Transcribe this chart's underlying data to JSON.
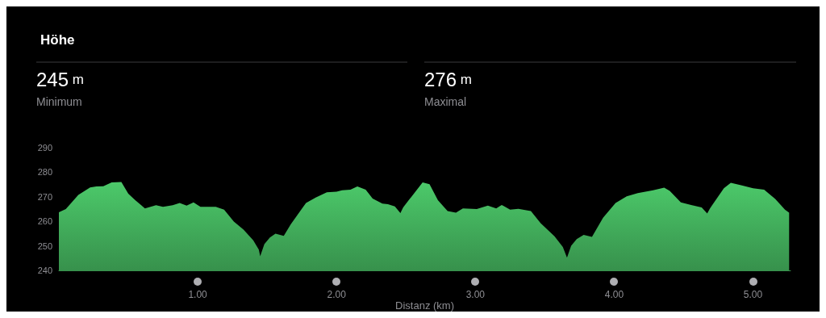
{
  "chart_data": {
    "type": "area",
    "title": "Höhe",
    "xlabel": "Distanz (km)",
    "annotations": [
      "245 m",
      "Minimum",
      "276 m",
      "Maximal"
    ],
    "x": [
      0.0,
      0.05,
      0.14,
      0.225,
      0.27,
      0.32,
      0.38,
      0.45,
      0.5,
      0.55,
      0.62,
      0.7,
      0.75,
      0.82,
      0.87,
      0.92,
      0.97,
      1.02,
      1.13,
      1.19,
      1.26,
      1.33,
      1.4,
      1.44,
      1.45,
      1.48,
      1.52,
      1.56,
      1.62,
      1.67,
      1.78,
      1.85,
      1.93,
      2.0,
      2.04,
      2.1,
      2.15,
      2.21,
      2.26,
      2.33,
      2.37,
      2.42,
      2.46,
      2.48,
      2.62,
      2.67,
      2.73,
      2.8,
      2.86,
      2.91,
      3.01,
      3.09,
      3.15,
      3.19,
      3.25,
      3.31,
      3.4,
      3.47,
      3.57,
      3.63,
      3.66,
      3.69,
      3.73,
      3.78,
      3.84,
      3.92,
      4.01,
      4.09,
      4.17,
      4.28,
      4.36,
      4.4,
      4.48,
      4.56,
      4.63,
      4.67,
      4.69,
      4.79,
      4.84,
      4.92,
      5.0,
      5.08,
      5.16,
      5.23,
      5.26
    ],
    "series": [
      {
        "color": "#4cc96a",
        "values": [
          263.7,
          265,
          270.8,
          273.8,
          274.2,
          274.3,
          275.9,
          276,
          271.3,
          268.6,
          265.3,
          266.6,
          265.9,
          266.6,
          267.5,
          266.4,
          267.7,
          265.9,
          265.9,
          264.8,
          259.9,
          256.6,
          252.3,
          248.5,
          245.8,
          250.7,
          253.4,
          255,
          254.1,
          258.8,
          267.5,
          269.7,
          271.8,
          272.1,
          272.7,
          272.9,
          274.2,
          272.9,
          269.3,
          267.2,
          267,
          266.1,
          263.4,
          265.7,
          275.9,
          275.1,
          268.6,
          264.2,
          263.5,
          265.3,
          265,
          266.4,
          265.3,
          266.7,
          264.8,
          265.1,
          264.2,
          259.3,
          253.9,
          249.6,
          245.2,
          250.1,
          252.8,
          254.5,
          253.7,
          261.5,
          267.5,
          270.2,
          271.5,
          272.7,
          273.7,
          272.4,
          267.7,
          266.6,
          265.7,
          263.2,
          265.3,
          273.5,
          275.7,
          274.6,
          273.5,
          272.9,
          269.1,
          264.8,
          263.5
        ]
      }
    ],
    "xlim": [
      0,
      5.27
    ],
    "xticks": [
      {
        "value": 1,
        "label": "1.00"
      },
      {
        "value": 2,
        "label": "2.00"
      },
      {
        "value": 3,
        "label": "3.00"
      },
      {
        "value": 4,
        "label": "4.00"
      },
      {
        "value": 5,
        "label": "5.00"
      }
    ],
    "ylim": [
      240,
      290
    ],
    "yticks": [
      240,
      250,
      260,
      270,
      280,
      290
    ],
    "grid": false,
    "marker": "none"
  }
}
